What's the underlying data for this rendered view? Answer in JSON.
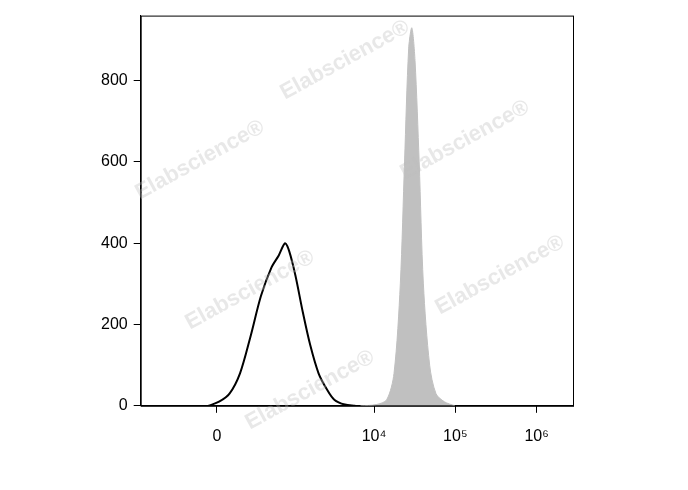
{
  "chart_data": {
    "type": "line",
    "annotations": [
      "Elabscience®"
    ],
    "xlim": [
      -1000,
      2800000
    ],
    "xticks": [
      0,
      {
        "value": 10000,
        "label": "10⁴"
      },
      {
        "value": 100000,
        "label": "10⁵"
      },
      {
        "value": 1000000,
        "label": "10⁶"
      }
    ],
    "ylim": [
      0,
      960
    ],
    "yticks": [
      0,
      200,
      400,
      600,
      800
    ],
    "grid": false,
    "series": [
      {
        "type": "line",
        "color": "#000000",
        "x": [
          -56,
          14,
          85,
          164,
          257,
          373,
          522,
          653,
          789,
          892,
          1069,
          1322,
          1631,
          2073,
          2635,
          3243,
          4366,
          5873
        ],
        "values": [
          0,
          10,
          30,
          80,
          170,
          270,
          340,
          370,
          400,
          380,
          320,
          230,
          150,
          80,
          40,
          15,
          3,
          0
        ]
      },
      {
        "type": "area",
        "color": "#c0c0c0",
        "x": [
          6810,
          10650,
          14320,
          17620,
          21060,
          23730,
          26700,
          29180,
          31920,
          35920,
          40460,
          48340,
          57800,
          73240,
          98750
        ],
        "values": [
          0,
          3,
          15,
          80,
          300,
          600,
          880,
          930,
          850,
          600,
          300,
          100,
          30,
          10,
          0
        ]
      }
    ]
  }
}
